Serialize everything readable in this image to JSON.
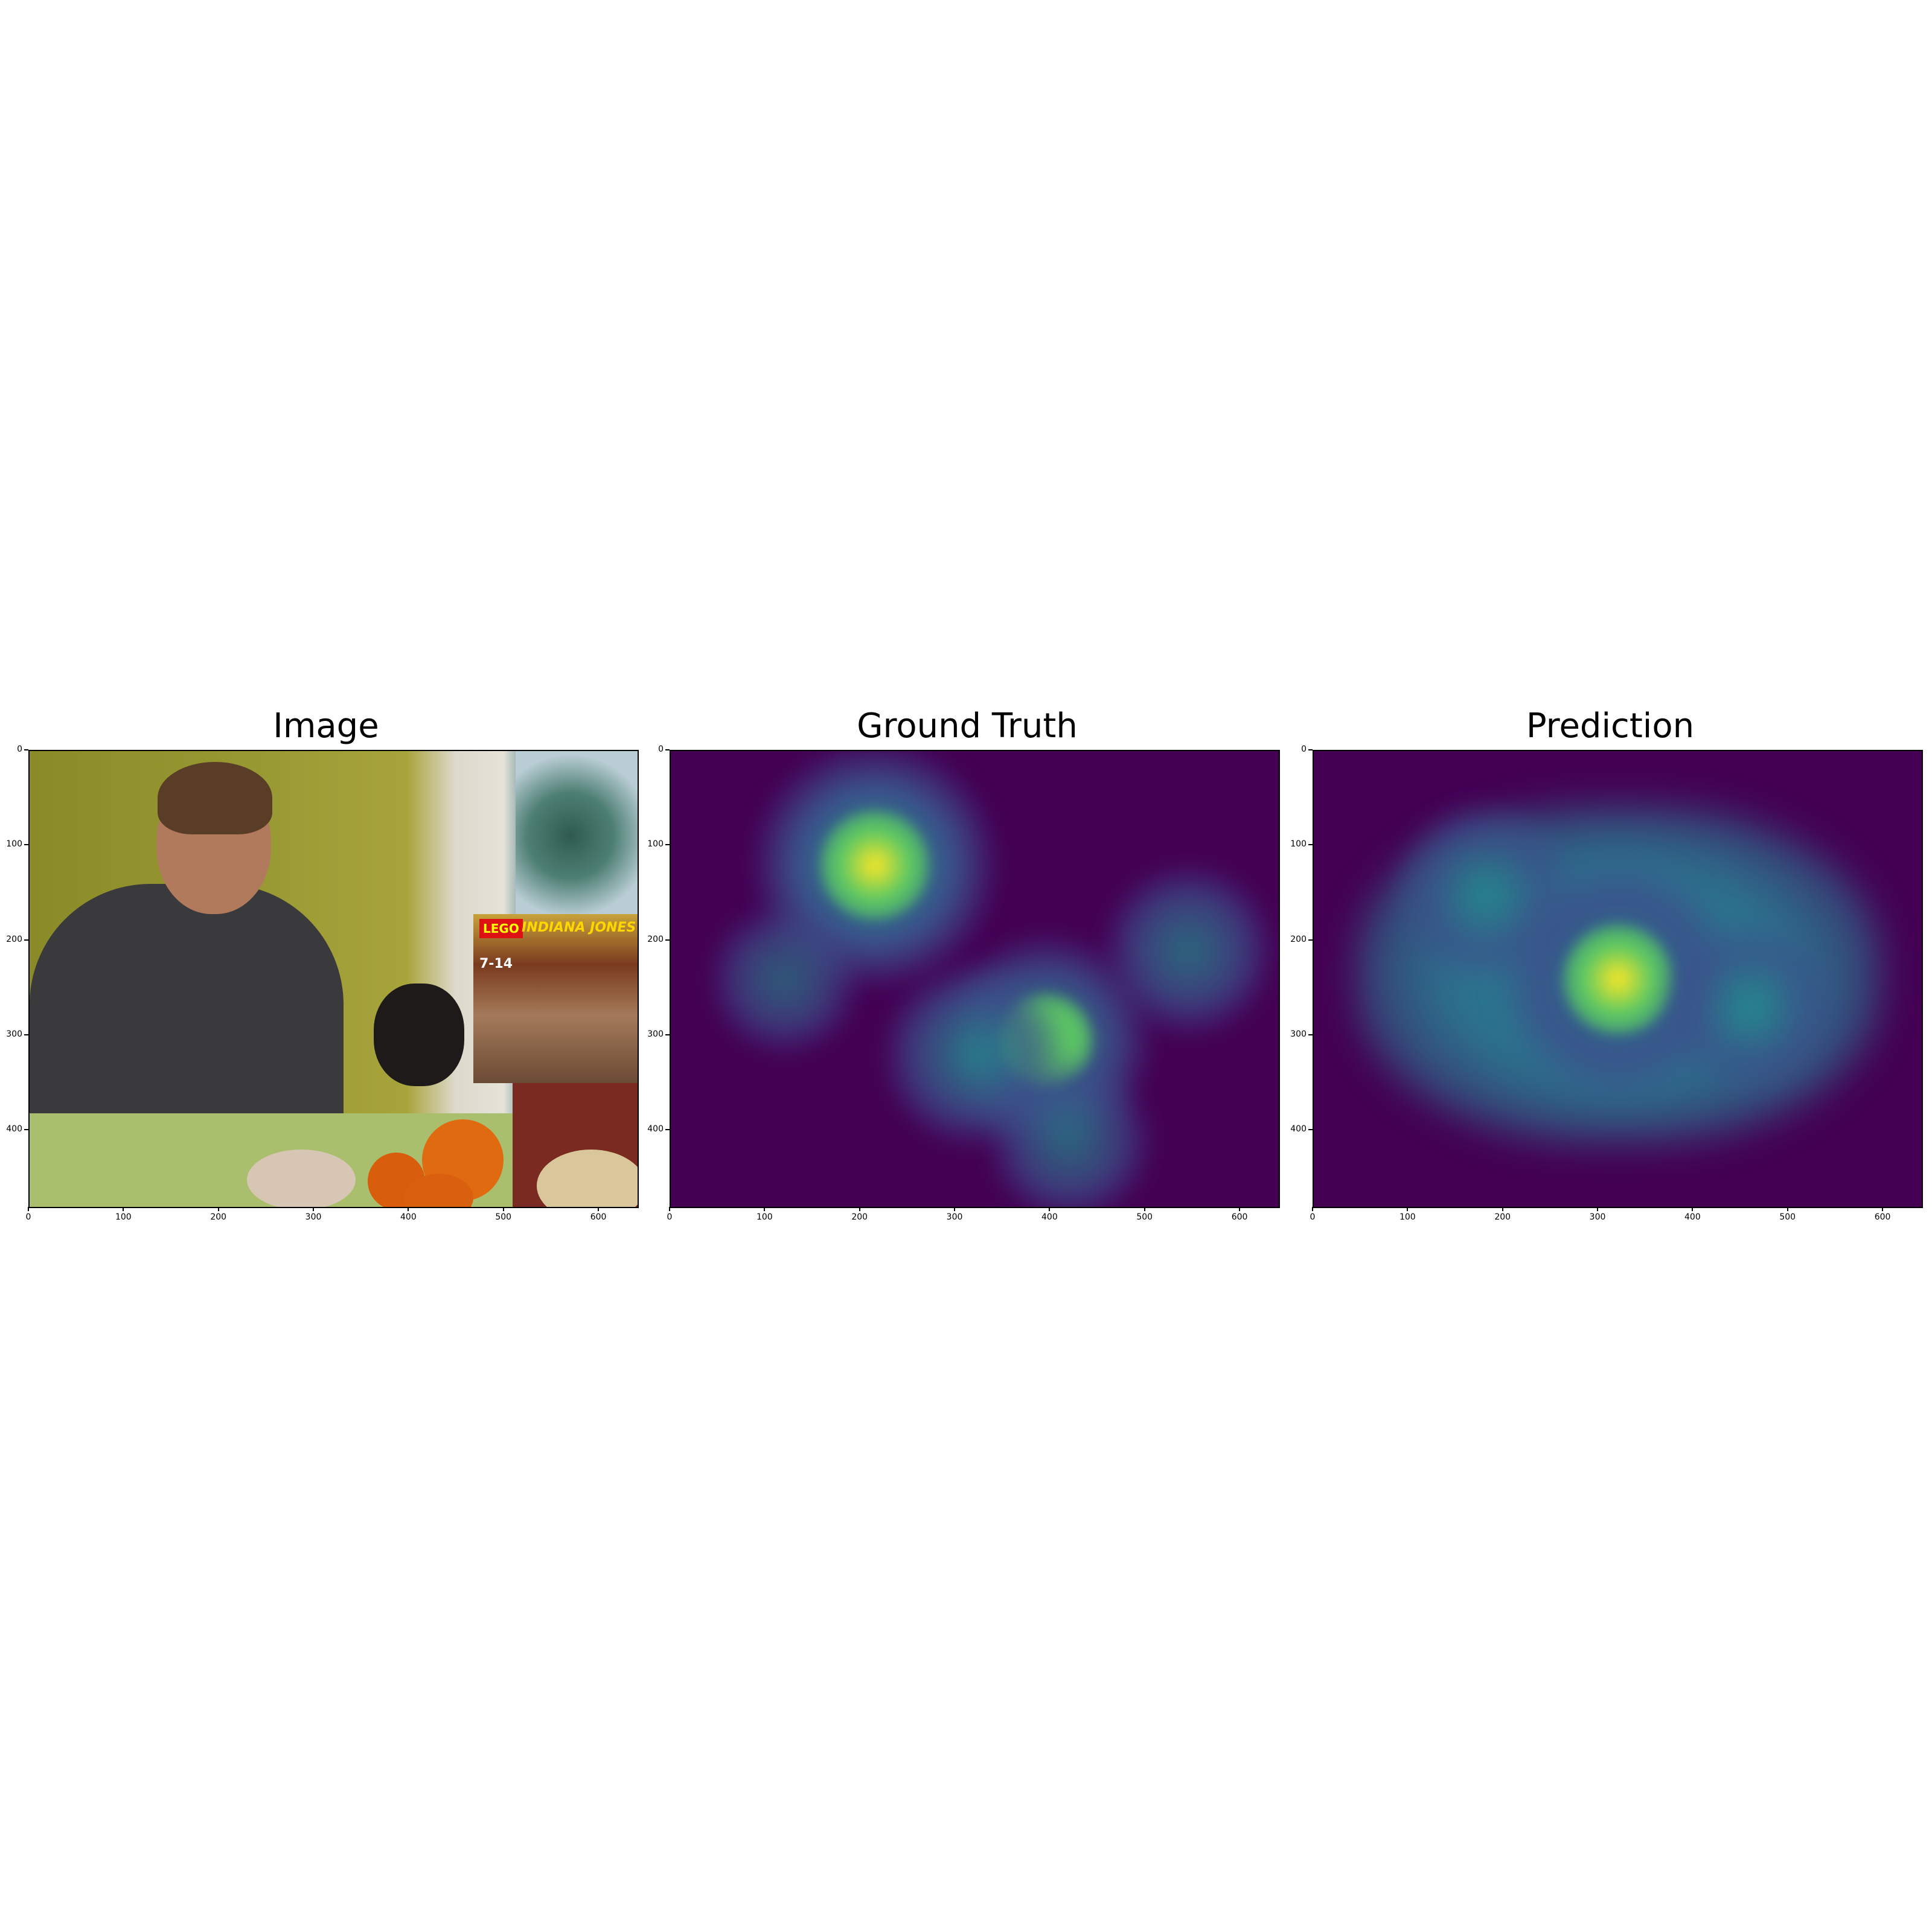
{
  "chart_data": [
    {
      "type": "heatmap",
      "title": "Image",
      "xlim": [
        0,
        640
      ],
      "ylim": [
        480,
        0
      ],
      "xticks": [
        "0",
        "100",
        "200",
        "300",
        "400",
        "500",
        "600"
      ],
      "yticks": [
        "0",
        "100",
        "200",
        "300",
        "400"
      ],
      "content": "photograph",
      "box_text": [
        "LEGO",
        "INDIANA JONES",
        "7-14"
      ]
    },
    {
      "type": "heatmap",
      "title": "Ground Truth",
      "xlim": [
        0,
        640
      ],
      "ylim": [
        480,
        0
      ],
      "xticks": [
        "0",
        "100",
        "200",
        "300",
        "400",
        "500",
        "600"
      ],
      "yticks": [
        "0",
        "100",
        "200",
        "300",
        "400"
      ],
      "colormap": "viridis",
      "hotspots": [
        {
          "x": 215,
          "y": 120,
          "intensity": 1.0
        },
        {
          "x": 395,
          "y": 305,
          "intensity": 0.75
        },
        {
          "x": 320,
          "y": 320,
          "intensity": 0.55
        },
        {
          "x": 545,
          "y": 210,
          "intensity": 0.45
        },
        {
          "x": 420,
          "y": 410,
          "intensity": 0.4
        },
        {
          "x": 120,
          "y": 240,
          "intensity": 0.3
        }
      ]
    },
    {
      "type": "heatmap",
      "title": "Prediction",
      "xlim": [
        0,
        640
      ],
      "ylim": [
        480,
        0
      ],
      "xticks": [
        "0",
        "100",
        "200",
        "300",
        "400",
        "500",
        "600"
      ],
      "yticks": [
        "0",
        "100",
        "200",
        "300",
        "400"
      ],
      "colormap": "viridis",
      "hotspots": [
        {
          "x": 320,
          "y": 240,
          "intensity": 1.0
        },
        {
          "x": 180,
          "y": 150,
          "intensity": 0.55
        },
        {
          "x": 460,
          "y": 270,
          "intensity": 0.5
        }
      ]
    }
  ],
  "colors": {
    "viridis_low": "#440154",
    "viridis_midlow": "#3b528b",
    "viridis_mid": "#21918c",
    "viridis_midhigh": "#5ec962",
    "viridis_high": "#fde725"
  },
  "icons": {
    "photo": "photo-icon"
  }
}
